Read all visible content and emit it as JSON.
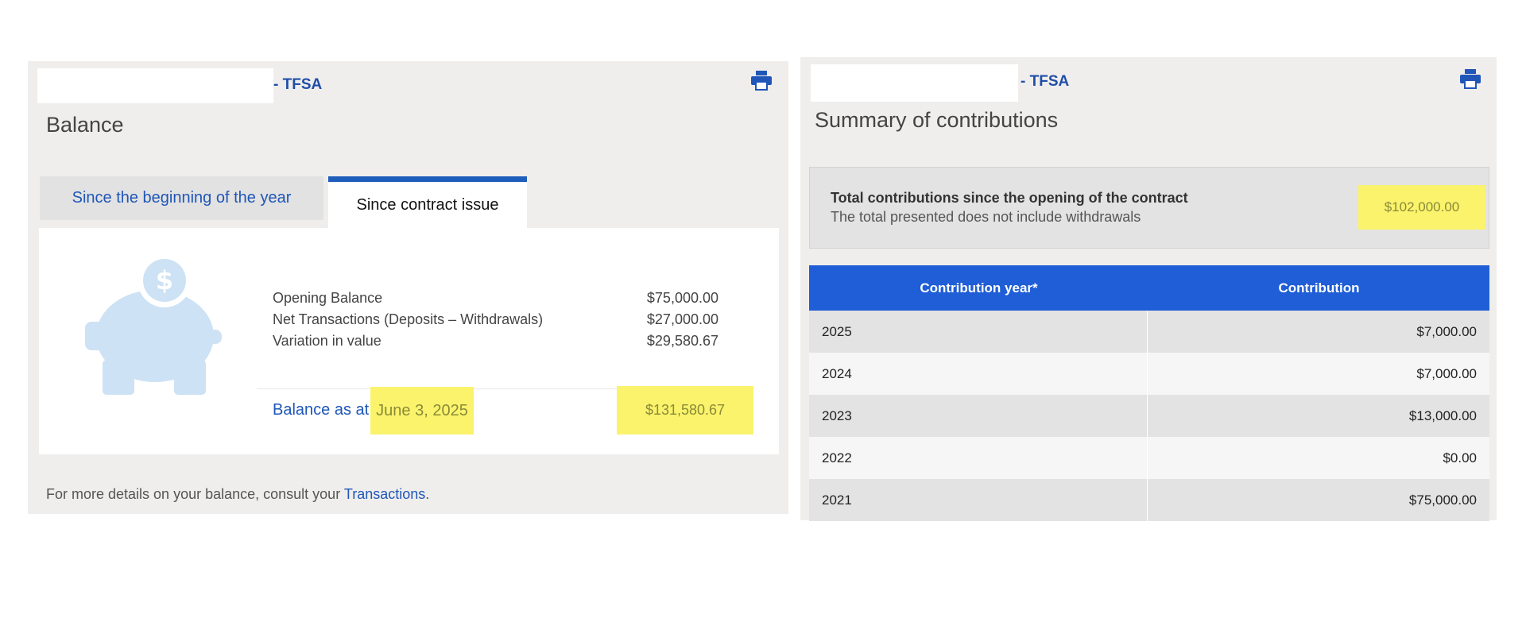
{
  "balance_panel": {
    "account_suffix": "- TFSA",
    "title": "Balance",
    "tabs": [
      {
        "label": "Since the beginning of the year",
        "active": false
      },
      {
        "label": "Since contract issue",
        "active": true
      }
    ],
    "rows": [
      {
        "label": "Opening Balance",
        "value": "$75,000.00"
      },
      {
        "label": "Net Transactions (Deposits – Withdrawals)",
        "value": "$27,000.00"
      },
      {
        "label": "Variation in value",
        "value": "$29,580.67"
      }
    ],
    "balance_label": "Balance as at",
    "balance_date": "June 3, 2025",
    "balance_value": "$131,580.67",
    "footer_text": "For more details on your balance, consult your",
    "footer_link": "Transactions",
    "footer_end": "."
  },
  "contributions_panel": {
    "account_suffix": "- TFSA",
    "title": "Summary of contributions",
    "total_title": "Total contributions since the opening of the contract",
    "total_subtitle": "The total presented does not include withdrawals",
    "total_value": "$102,000.00",
    "table": {
      "headers": [
        "Contribution year*",
        "Contribution"
      ],
      "rows": [
        {
          "year": "2025",
          "contribution": "$7,000.00"
        },
        {
          "year": "2024",
          "contribution": "$7,000.00"
        },
        {
          "year": "2023",
          "contribution": "$13,000.00"
        },
        {
          "year": "2022",
          "contribution": "$0.00"
        },
        {
          "year": "2021",
          "contribution": "$75,000.00"
        }
      ]
    }
  },
  "colors": {
    "accent_blue": "#1f5ed6",
    "link_blue": "#1f56b8",
    "highlight_yellow": "#faf36b",
    "panel_bg": "#efeeec",
    "piggy_blue": "#cde2f4"
  },
  "icons": [
    "printer-icon",
    "piggy-bank-icon",
    "dollar-icon"
  ]
}
